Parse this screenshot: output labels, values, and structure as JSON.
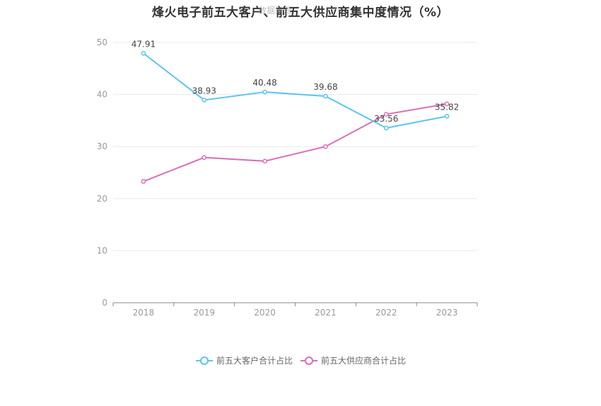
{
  "chart_data": {
    "type": "line",
    "title": "烽火电子前五大客户、前五大供应商集中度情况（%）",
    "watermark": "数据来源",
    "categories": [
      "2018",
      "2019",
      "2020",
      "2021",
      "2022",
      "2023"
    ],
    "yticks": [
      "0",
      "10",
      "20",
      "30",
      "40",
      "50"
    ],
    "ylim": [
      0,
      50
    ],
    "grid": true,
    "legend_position": "bottom-center",
    "series": [
      {
        "name": "前五大客户合计占比",
        "color": "#5bc4f0",
        "values": [
          47.91,
          38.93,
          40.48,
          39.68,
          33.56,
          35.82
        ],
        "labels": [
          "47.91",
          "38.93",
          "40.48",
          "39.68",
          "33.56",
          "35.82"
        ]
      },
      {
        "name": "前五大供应商合计占比",
        "color": "#d96fb8",
        "values": [
          23.3,
          27.9,
          27.2,
          30.0,
          36.2,
          38.2
        ]
      }
    ]
  }
}
